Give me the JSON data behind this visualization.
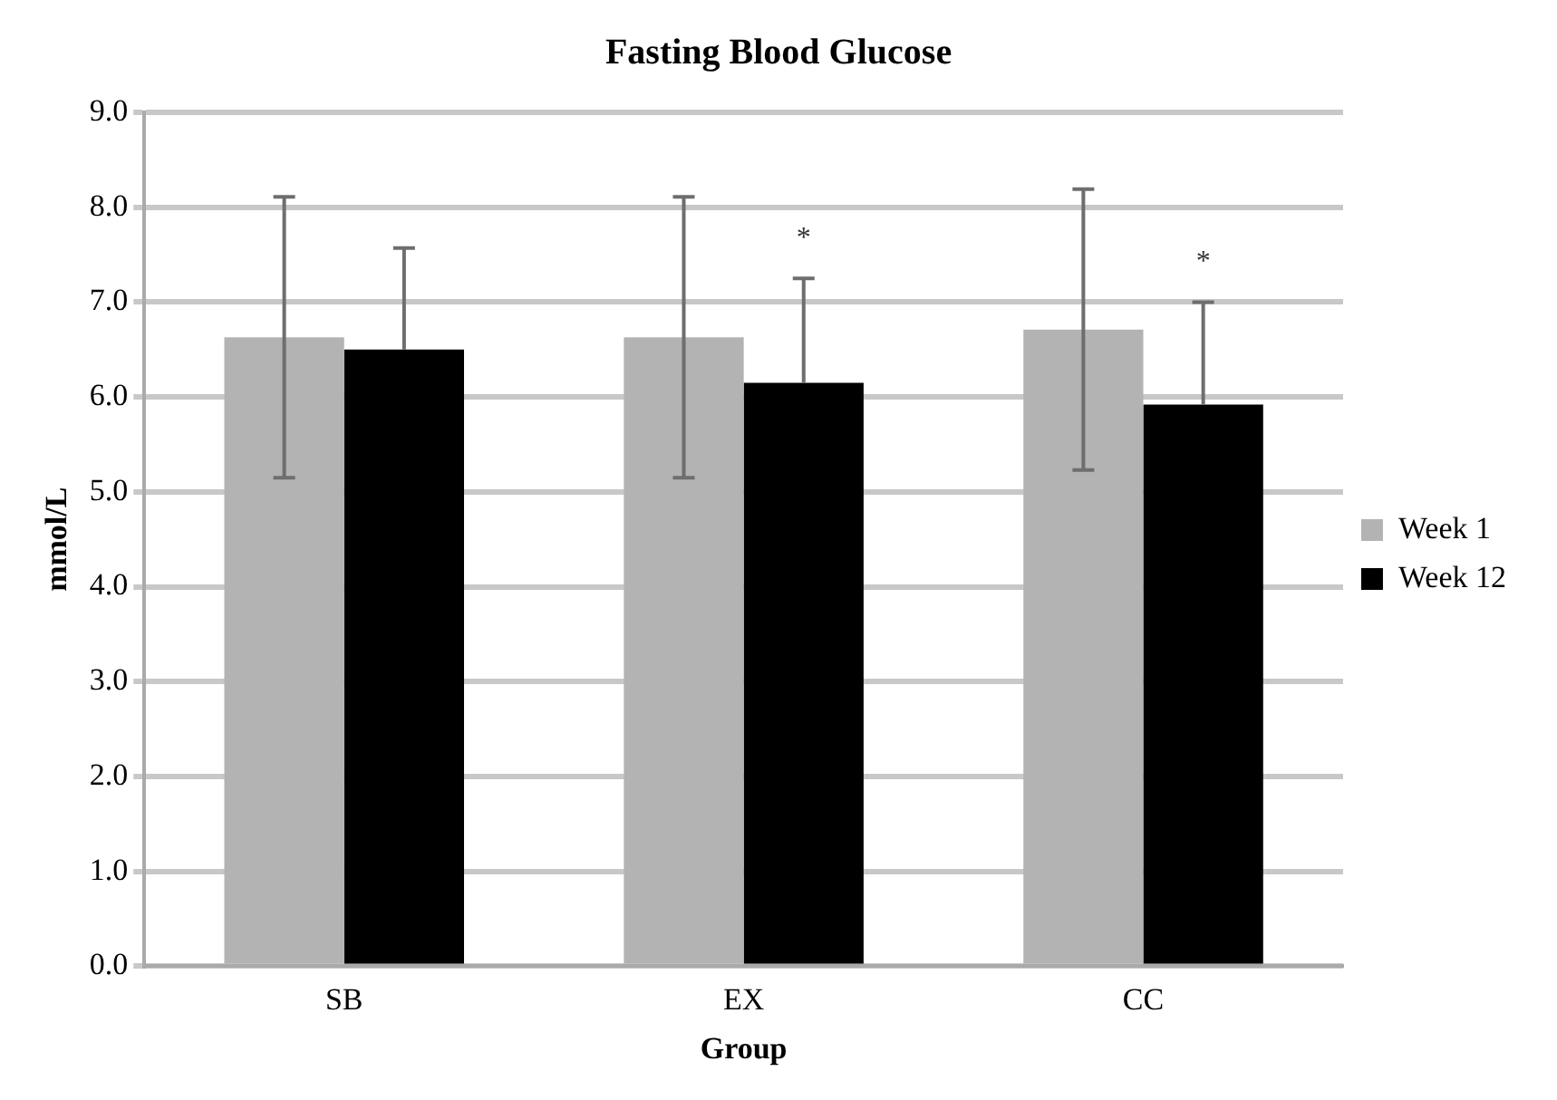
{
  "chart_data": {
    "type": "bar",
    "title": "Fasting Blood Glucose",
    "xlabel": "Group",
    "ylabel": "mmol/L",
    "categories": [
      "SB",
      "EX",
      "CC"
    ],
    "series": [
      {
        "name": "Week 1",
        "color": "#b3b3b3",
        "values": [
          6.63,
          6.63,
          6.71
        ],
        "errors": [
          1.48,
          1.48,
          1.48
        ]
      },
      {
        "name": "Week 12",
        "color": "#000000",
        "values": [
          6.5,
          6.15,
          5.92
        ],
        "errors": [
          [
            6.5,
            7.57
          ],
          [
            6.15,
            7.25
          ],
          [
            5.92,
            7.0
          ]
        ]
      }
    ],
    "ylim": [
      0,
      9
    ],
    "yticks": [
      {
        "value": 0,
        "label": "0.0"
      },
      {
        "value": 1,
        "label": "1.0"
      },
      {
        "value": 2,
        "label": "2.0"
      },
      {
        "value": 3,
        "label": "3.0"
      },
      {
        "value": 4,
        "label": "4.0"
      },
      {
        "value": 5,
        "label": "5.0"
      },
      {
        "value": 6,
        "label": "6.0"
      },
      {
        "value": 7,
        "label": "7.0"
      },
      {
        "value": 8,
        "label": "8.0"
      },
      {
        "value": 9,
        "label": "9.0"
      }
    ],
    "grid": "y",
    "legend": "right",
    "annotations": [
      "*",
      "*"
    ]
  }
}
